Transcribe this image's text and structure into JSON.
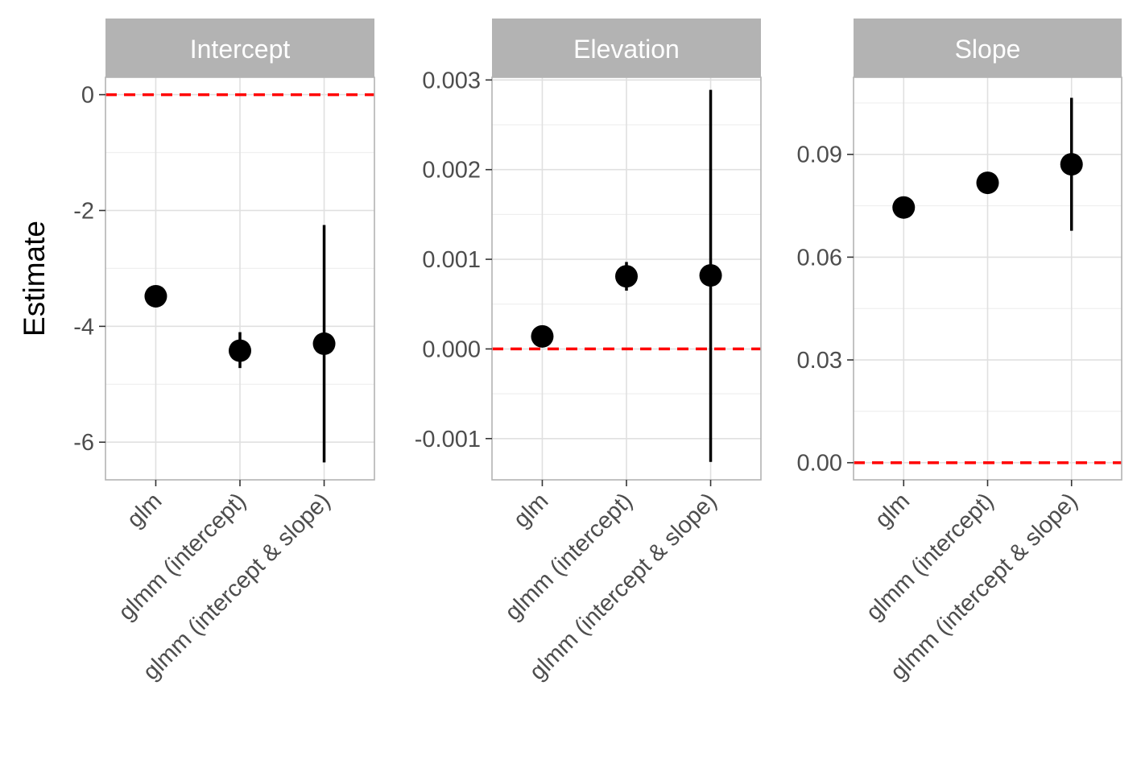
{
  "chart_data": {
    "type": "scatter",
    "ylabel": "Estimate",
    "reference_line": {
      "value": 0,
      "color": "#ff0000",
      "style": "dashed"
    },
    "categories": [
      "glm",
      "glmm (intercept)",
      "glmm (intercept & slope)"
    ],
    "grid": true,
    "panels": [
      {
        "title": "Intercept",
        "ylim": [
          -6.65,
          0.3
        ],
        "yticks": [
          0,
          -2,
          -4,
          -6
        ],
        "ytick_labels": [
          "0",
          "-2",
          "-4",
          "-6"
        ],
        "estimates": [
          -3.48,
          -4.42,
          -4.3
        ],
        "lower": [
          null,
          -4.72,
          -6.35
        ],
        "upper": [
          null,
          -4.1,
          -2.25
        ]
      },
      {
        "title": "Elevation",
        "ylim": [
          -0.00146,
          0.00303
        ],
        "yticks": [
          0.003,
          0.002,
          0.001,
          0.0,
          -0.001
        ],
        "ytick_labels": [
          "0.003",
          "0.002",
          "0.001",
          "0.000",
          "-0.001"
        ],
        "estimates": [
          0.00014,
          0.00081,
          0.00082
        ],
        "lower": [
          null,
          0.00065,
          -0.00126
        ],
        "upper": [
          null,
          0.00097,
          0.00289
        ]
      },
      {
        "title": "Slope",
        "ylim": [
          -0.005,
          0.1125
        ],
        "yticks": [
          0.09,
          0.06,
          0.03,
          0.0
        ],
        "ytick_labels": [
          "0.09",
          "0.06",
          "0.03",
          "0.00"
        ],
        "estimates": [
          0.0745,
          0.0817,
          0.0871
        ],
        "lower": [
          null,
          null,
          0.0677
        ],
        "upper": [
          null,
          null,
          0.1065
        ]
      }
    ]
  },
  "colors": {
    "strip_bg": "#b3b3b3",
    "panel_border": "#b3b3b3",
    "grid_major": "#e0e0e0",
    "grid_minor": "#efefef",
    "point": "#000000",
    "reference": "#ff0000"
  }
}
